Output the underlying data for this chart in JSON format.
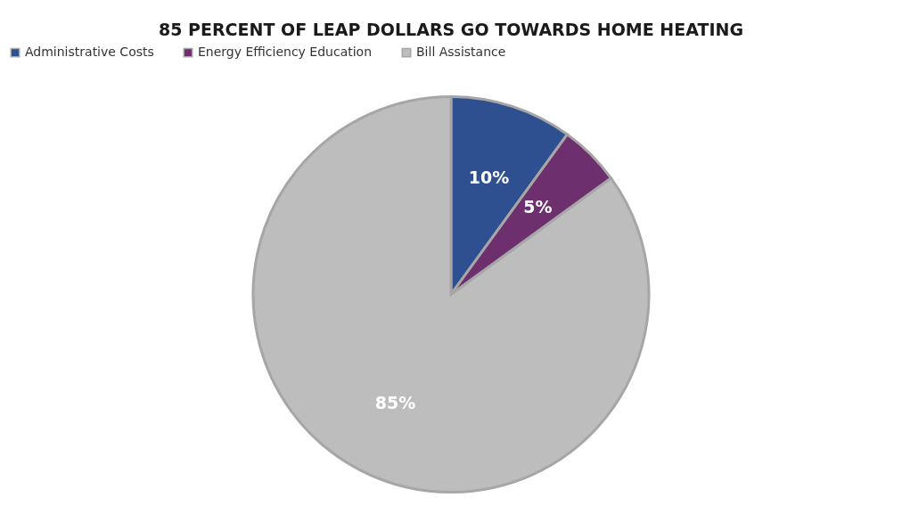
{
  "chart_data": {
    "type": "pie",
    "title": "85 PERCENT OF LEAP DOLLARS GO TOWARDS HOME HEATING",
    "categories": [
      "Administrative Costs",
      "Energy Efficiency Education",
      "Bill Assistance"
    ],
    "values": [
      10,
      5,
      85
    ],
    "colors": [
      "#2f5090",
      "#6e2f6e",
      "#bdbdbd"
    ],
    "value_labels": [
      "10%",
      "5%",
      "85%"
    ],
    "legend": "top"
  }
}
